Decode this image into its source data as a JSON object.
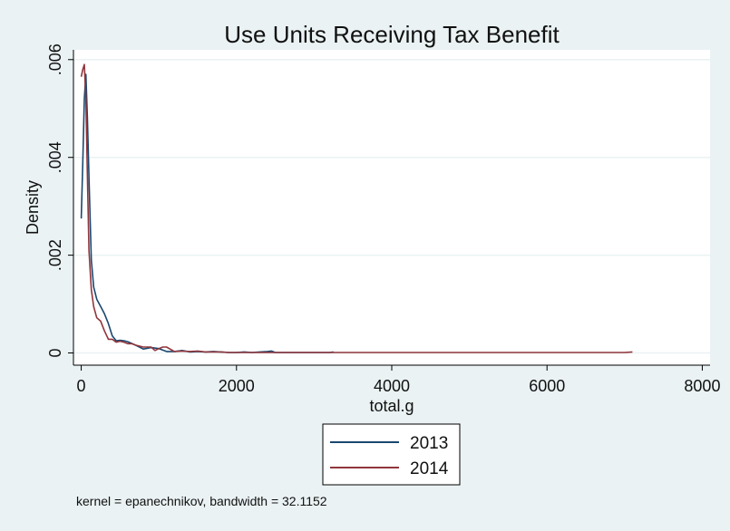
{
  "chart_data": {
    "type": "line",
    "title": "Use Units Receiving Tax Benefit",
    "xlabel": "total.g",
    "ylabel": "Density",
    "xlim": [
      -100,
      8100
    ],
    "ylim": [
      -0.00025,
      0.0062
    ],
    "x_ticks": [
      {
        "value": 0,
        "label": "0"
      },
      {
        "value": 2000,
        "label": "2000"
      },
      {
        "value": 4000,
        "label": "4000"
      },
      {
        "value": 6000,
        "label": "6000"
      },
      {
        "value": 8000,
        "label": "8000"
      }
    ],
    "y_ticks": [
      {
        "value": 0,
        "label": "0"
      },
      {
        "value": 0.002,
        "label": ".002"
      },
      {
        "value": 0.004,
        "label": ".004"
      },
      {
        "value": 0.006,
        "label": ".006"
      }
    ],
    "grid": "horizontal",
    "legend_position": "bottom",
    "note": "kernel = epanechnikov, bandwidth = 32.1152",
    "series": [
      {
        "name": "2013",
        "color": "#1a476f",
        "x": [
          0,
          20,
          40,
          60,
          80,
          100,
          130,
          160,
          200,
          250,
          300,
          350,
          400,
          450,
          500,
          550,
          600,
          700,
          800,
          900,
          1000,
          1100,
          1200,
          1300,
          1400,
          1500,
          1600,
          1700,
          1800,
          1900,
          2000,
          2100,
          2200,
          2300,
          2400,
          2450,
          2500,
          2600,
          2800,
          3000,
          3200,
          3250
        ],
        "y": [
          0.00275,
          0.0039,
          0.0052,
          0.0057,
          0.0048,
          0.0036,
          0.0019,
          0.00135,
          0.0011,
          0.00095,
          0.0008,
          0.0006,
          0.00035,
          0.00025,
          0.00026,
          0.00025,
          0.00023,
          0.00016,
          8e-05,
          0.00011,
          9e-05,
          3e-05,
          3e-05,
          5e-05,
          2e-05,
          3e-05,
          2e-05,
          3e-05,
          2e-05,
          1e-05,
          1e-05,
          2e-05,
          1e-05,
          2e-05,
          3e-05,
          4e-05,
          1e-05,
          1e-05,
          1e-05,
          1e-05,
          1e-05,
          2e-05
        ]
      },
      {
        "name": "2014",
        "color": "#90353b",
        "x": [
          0,
          20,
          40,
          60,
          80,
          100,
          130,
          160,
          200,
          250,
          300,
          350,
          400,
          450,
          500,
          550,
          600,
          650,
          700,
          800,
          900,
          950,
          1000,
          1050,
          1100,
          1200,
          1300,
          1400,
          1500,
          1600,
          1700,
          1800,
          1900,
          2000,
          2200,
          2400,
          2600,
          3000,
          4000,
          5000,
          6000,
          7000,
          7100
        ],
        "y": [
          0.00565,
          0.0058,
          0.0059,
          0.0052,
          0.0036,
          0.0021,
          0.0013,
          0.00095,
          0.00072,
          0.00065,
          0.00045,
          0.00028,
          0.00028,
          0.00022,
          0.00024,
          0.00022,
          0.00019,
          0.00019,
          0.00016,
          0.00012,
          0.00012,
          5e-05,
          9e-05,
          0.00012,
          0.00012,
          3e-05,
          4e-05,
          3e-05,
          4e-05,
          2e-05,
          2e-05,
          2e-05,
          1e-05,
          1e-05,
          1e-05,
          1e-05,
          1e-05,
          1e-05,
          1e-05,
          1e-05,
          1e-05,
          1e-05,
          2e-05
        ]
      }
    ]
  }
}
